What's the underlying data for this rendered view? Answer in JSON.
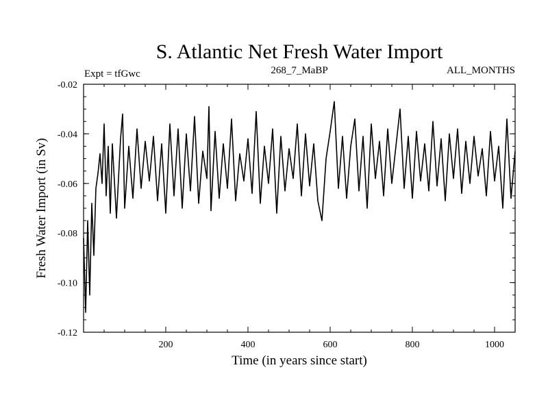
{
  "chart_data": {
    "type": "line",
    "title": "S. Atlantic Net Fresh Water Import",
    "subtitle_left": "Expt = tfGwc",
    "subtitle_center": "268_7_MaBP",
    "subtitle_right": "ALL_MONTHS",
    "xlabel": "Time (in years since start)",
    "ylabel": "Fresh Water Import (in Sv)",
    "xlim": [
      0,
      1050
    ],
    "ylim": [
      -0.12,
      -0.02
    ],
    "x_ticks": [
      200,
      400,
      600,
      800,
      1000
    ],
    "x_tick_labels": [
      "200",
      "400",
      "600",
      "800",
      "1000"
    ],
    "y_ticks": [
      -0.12,
      -0.1,
      -0.08,
      -0.06,
      -0.04,
      -0.02
    ],
    "y_tick_labels": [
      "-0.12",
      "-0.10",
      "-0.08",
      "-0.06",
      "-0.04",
      "-0.02"
    ],
    "grid": false,
    "series": [
      {
        "name": "Net Fresh Water Import",
        "color": "#000000",
        "x": [
          0,
          5,
          10,
          15,
          20,
          25,
          30,
          35,
          40,
          45,
          50,
          55,
          60,
          65,
          70,
          80,
          90,
          95,
          100,
          110,
          120,
          130,
          140,
          150,
          160,
          170,
          180,
          190,
          200,
          210,
          220,
          230,
          240,
          250,
          260,
          270,
          280,
          290,
          300,
          305,
          310,
          320,
          330,
          340,
          350,
          360,
          370,
          380,
          390,
          400,
          410,
          420,
          430,
          440,
          450,
          460,
          470,
          480,
          490,
          500,
          510,
          520,
          530,
          540,
          550,
          560,
          570,
          580,
          590,
          600,
          610,
          620,
          630,
          640,
          650,
          660,
          670,
          680,
          690,
          700,
          710,
          720,
          730,
          740,
          750,
          760,
          770,
          780,
          790,
          800,
          810,
          820,
          830,
          840,
          850,
          860,
          870,
          880,
          890,
          900,
          910,
          920,
          930,
          940,
          950,
          960,
          970,
          980,
          990,
          1000,
          1010,
          1020,
          1030,
          1040,
          1050
        ],
        "values": [
          -0.082,
          -0.112,
          -0.075,
          -0.105,
          -0.068,
          -0.089,
          -0.062,
          -0.056,
          -0.048,
          -0.06,
          -0.036,
          -0.065,
          -0.045,
          -0.072,
          -0.044,
          -0.074,
          -0.042,
          -0.032,
          -0.07,
          -0.045,
          -0.066,
          -0.038,
          -0.062,
          -0.043,
          -0.059,
          -0.041,
          -0.067,
          -0.044,
          -0.072,
          -0.036,
          -0.065,
          -0.038,
          -0.07,
          -0.04,
          -0.063,
          -0.033,
          -0.068,
          -0.047,
          -0.058,
          -0.029,
          -0.071,
          -0.039,
          -0.066,
          -0.044,
          -0.062,
          -0.034,
          -0.067,
          -0.048,
          -0.059,
          -0.042,
          -0.064,
          -0.031,
          -0.068,
          -0.045,
          -0.06,
          -0.038,
          -0.072,
          -0.041,
          -0.063,
          -0.046,
          -0.058,
          -0.036,
          -0.065,
          -0.04,
          -0.061,
          -0.044,
          -0.067,
          -0.075,
          -0.05,
          -0.039,
          -0.027,
          -0.062,
          -0.041,
          -0.066,
          -0.045,
          -0.034,
          -0.063,
          -0.041,
          -0.07,
          -0.036,
          -0.058,
          -0.043,
          -0.065,
          -0.038,
          -0.06,
          -0.045,
          -0.03,
          -0.062,
          -0.041,
          -0.066,
          -0.039,
          -0.059,
          -0.044,
          -0.063,
          -0.035,
          -0.061,
          -0.042,
          -0.067,
          -0.04,
          -0.058,
          -0.038,
          -0.064,
          -0.043,
          -0.06,
          -0.041,
          -0.057,
          -0.046,
          -0.065,
          -0.039,
          -0.059,
          -0.045,
          -0.07,
          -0.034,
          -0.066,
          -0.047
        ]
      }
    ]
  }
}
